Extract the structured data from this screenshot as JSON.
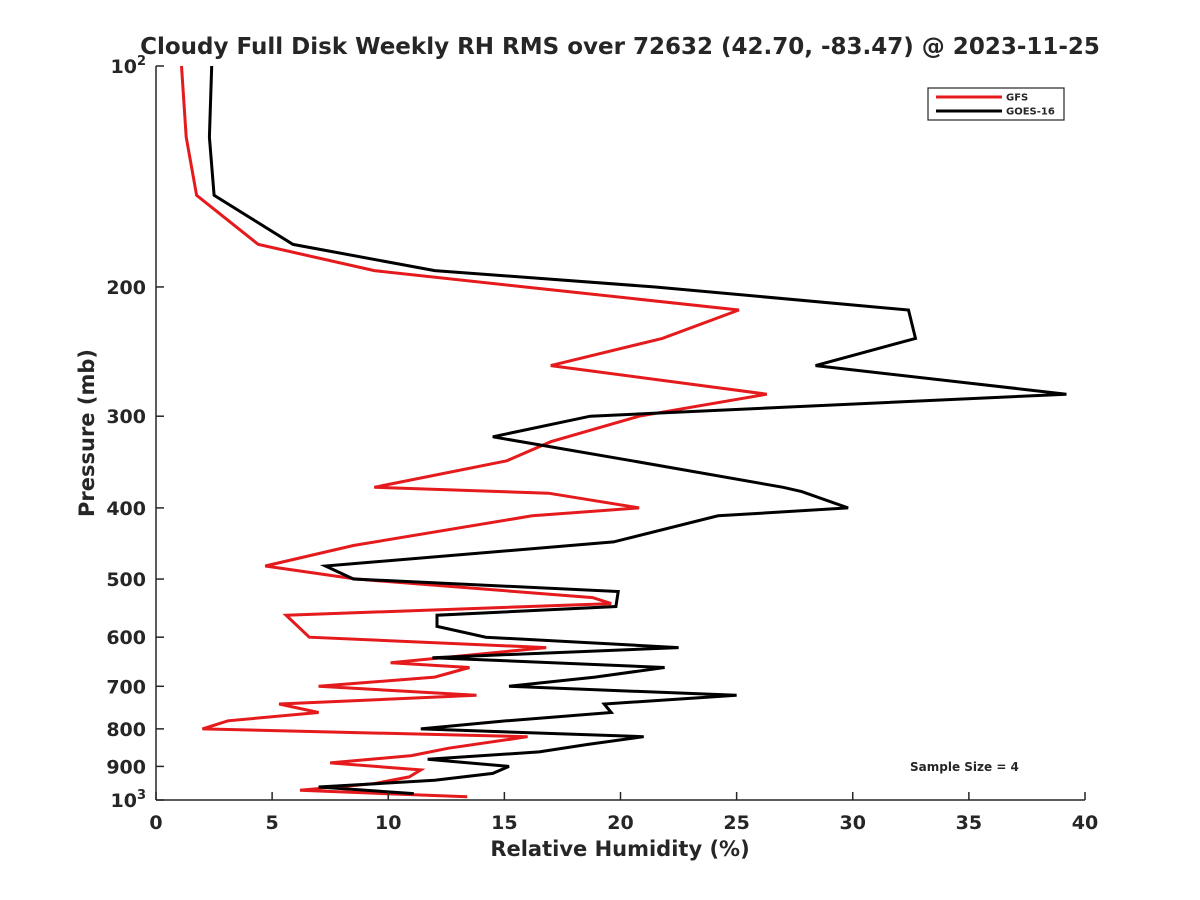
{
  "chart_data": {
    "type": "line",
    "title": "Cloudy Full Disk Weekly RH RMS over 72632 (42.70, -83.47) @ 2023-11-25",
    "xlabel": "Relative Humidity (%)",
    "ylabel": "Pressure (mb)",
    "xlim": [
      0,
      40
    ],
    "ylim": [
      100,
      1000
    ],
    "y_scale": "log",
    "y_reversed": true,
    "grid": false,
    "legend_position": "top-right",
    "x_ticks": [
      0,
      5,
      10,
      15,
      20,
      25,
      30,
      35,
      40
    ],
    "y_ticks": [
      {
        "value": 100,
        "base": "10",
        "exp": "2"
      },
      {
        "value": 200,
        "label": "200"
      },
      {
        "value": 300,
        "label": "300"
      },
      {
        "value": 400,
        "label": "400"
      },
      {
        "value": 500,
        "label": "500"
      },
      {
        "value": 600,
        "label": "600"
      },
      {
        "value": 700,
        "label": "700"
      },
      {
        "value": 800,
        "label": "800"
      },
      {
        "value": 900,
        "label": "900"
      },
      {
        "value": 1000,
        "base": "10",
        "exp": "3"
      }
    ],
    "annotation": "Sample Size = 4",
    "series": [
      {
        "name": "GFS",
        "color": "#e41a1c",
        "points": [
          [
            1.1,
            100
          ],
          [
            1.3,
            125
          ],
          [
            1.75,
            150
          ],
          [
            4.4,
            175
          ],
          [
            9.4,
            190
          ],
          [
            15.9,
            200
          ],
          [
            25.1,
            215
          ],
          [
            21.8,
            235
          ],
          [
            17.0,
            256
          ],
          [
            26.3,
            280
          ],
          [
            20.8,
            300
          ],
          [
            17.0,
            325
          ],
          [
            15.1,
            345
          ],
          [
            9.4,
            375
          ],
          [
            16.9,
            382
          ],
          [
            20.8,
            400
          ],
          [
            16.2,
            410
          ],
          [
            8.5,
            450
          ],
          [
            4.7,
            480
          ],
          [
            8.6,
            500
          ],
          [
            18.8,
            530
          ],
          [
            19.6,
            540
          ],
          [
            5.6,
            560
          ],
          [
            6.6,
            600
          ],
          [
            16.8,
            620
          ],
          [
            10.1,
            650
          ],
          [
            13.5,
            660
          ],
          [
            12.0,
            680
          ],
          [
            7.0,
            700
          ],
          [
            13.8,
            720
          ],
          [
            5.3,
            740
          ],
          [
            7.0,
            760
          ],
          [
            3.1,
            780
          ],
          [
            2.0,
            800
          ],
          [
            16.0,
            820
          ],
          [
            12.6,
            850
          ],
          [
            11.0,
            870
          ],
          [
            7.5,
            890
          ],
          [
            11.4,
            910
          ],
          [
            10.9,
            930
          ],
          [
            9.4,
            950
          ],
          [
            6.2,
            970
          ],
          [
            13.4,
            990
          ]
        ]
      },
      {
        "name": "GOES-16",
        "color": "#000000",
        "points": [
          [
            2.4,
            100
          ],
          [
            2.3,
            125
          ],
          [
            2.5,
            150
          ],
          [
            5.9,
            175
          ],
          [
            12.0,
            190
          ],
          [
            21.5,
            200
          ],
          [
            32.4,
            215
          ],
          [
            32.7,
            235
          ],
          [
            28.4,
            256
          ],
          [
            39.2,
            280
          ],
          [
            18.7,
            300
          ],
          [
            14.5,
            320
          ],
          [
            20.5,
            345
          ],
          [
            27.0,
            375
          ],
          [
            27.8,
            380
          ],
          [
            29.8,
            400
          ],
          [
            24.2,
            410
          ],
          [
            19.7,
            445
          ],
          [
            7.3,
            480
          ],
          [
            8.5,
            500
          ],
          [
            19.9,
            520
          ],
          [
            19.8,
            545
          ],
          [
            12.1,
            560
          ],
          [
            12.1,
            580
          ],
          [
            14.2,
            600
          ],
          [
            22.5,
            620
          ],
          [
            11.9,
            640
          ],
          [
            21.9,
            660
          ],
          [
            18.9,
            680
          ],
          [
            15.2,
            700
          ],
          [
            25.0,
            720
          ],
          [
            19.3,
            740
          ],
          [
            19.6,
            760
          ],
          [
            15.1,
            780
          ],
          [
            11.4,
            800
          ],
          [
            21.0,
            820
          ],
          [
            18.6,
            840
          ],
          [
            16.5,
            860
          ],
          [
            11.7,
            880
          ],
          [
            15.2,
            900
          ],
          [
            14.5,
            920
          ],
          [
            12.0,
            940
          ],
          [
            7.0,
            960
          ],
          [
            11.1,
            980
          ]
        ]
      }
    ]
  }
}
